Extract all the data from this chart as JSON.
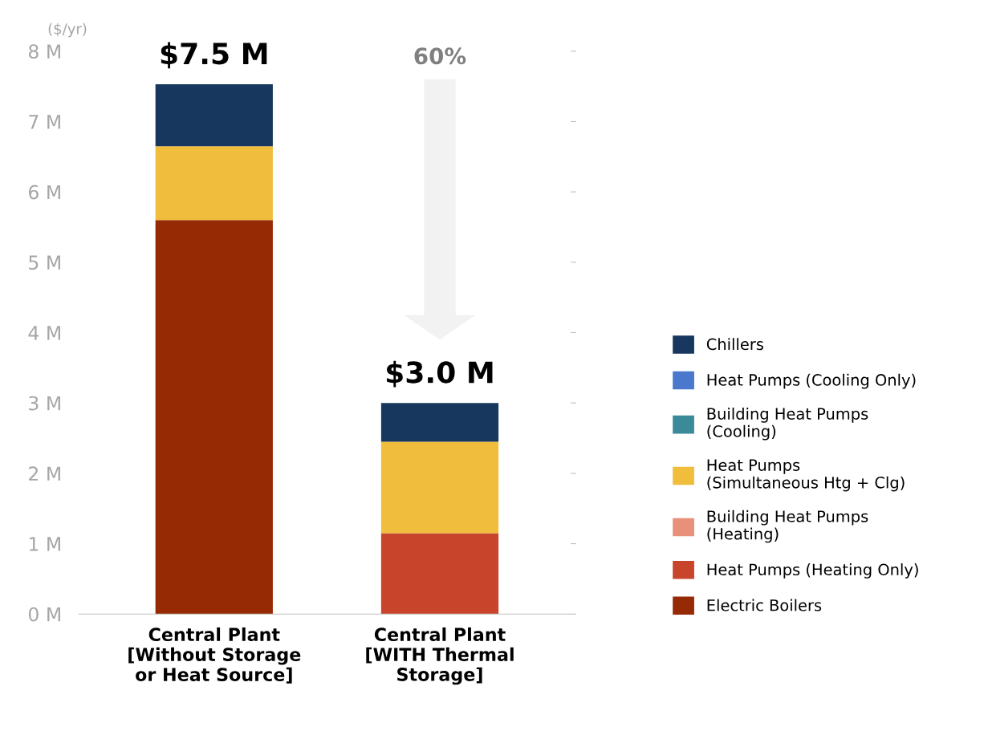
{
  "chart_data": {
    "type": "bar",
    "stacked": true,
    "ylabel": "($/yr)",
    "categories": [
      "Central Plant\n[Without Storage\nor Heat Source]",
      "Central Plant\n[WITH Thermal\nStorage]"
    ],
    "series": [
      {
        "name": "Electric Boilers",
        "color": "#952a05",
        "values": [
          5.6,
          0
        ]
      },
      {
        "name": "Heat Pumps (Heating Only)",
        "color": "#c8442a",
        "values": [
          0,
          1.15
        ]
      },
      {
        "name": "Building Heat Pumps\n(Heating)",
        "color": "#e8907a",
        "values": [
          0,
          0
        ]
      },
      {
        "name": "Heat Pumps\n(Simultaneous Htg + Clg)",
        "color": "#f0bd3c",
        "values": [
          1.05,
          1.3
        ]
      },
      {
        "name": "Building Heat Pumps\n(Cooling)",
        "color": "#3a8a9a",
        "values": [
          0,
          0
        ]
      },
      {
        "name": "Heat Pumps (Cooling Only)",
        "color": "#4a78cc",
        "values": [
          0,
          0
        ]
      },
      {
        "name": "Chillers",
        "color": "#17375e",
        "values": [
          0.88,
          0.55
        ]
      }
    ],
    "totals": [
      "$7.5 M",
      "$3.0 M"
    ],
    "annotations": [
      "60%"
    ],
    "ylim": [
      0,
      8
    ],
    "yticks": [
      {
        "value": 0,
        "label": "0 M"
      },
      {
        "value": 1,
        "label": "1 M"
      },
      {
        "value": 2,
        "label": "2 M"
      },
      {
        "value": 3,
        "label": "3 M"
      },
      {
        "value": 4,
        "label": "4 M"
      },
      {
        "value": 5,
        "label": "5 M"
      },
      {
        "value": 6,
        "label": "6 M"
      },
      {
        "value": 7,
        "label": "7 M"
      },
      {
        "value": 8,
        "label": "8 M"
      }
    ],
    "grid": false,
    "legend": "right"
  }
}
